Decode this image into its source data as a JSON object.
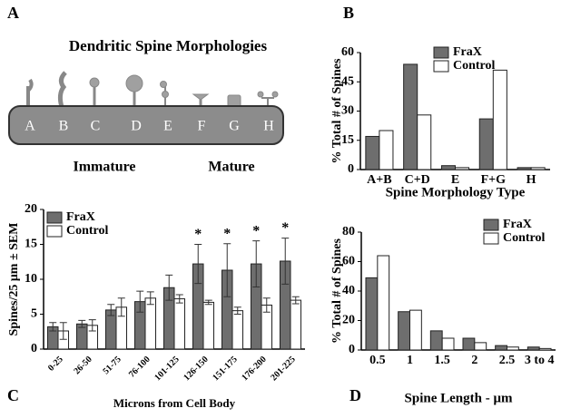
{
  "panel_labels": [
    "A",
    "B",
    "C",
    "D"
  ],
  "diagram": {
    "title": "Dendritic Spine Morphologies",
    "spine_labels": [
      "A",
      "B",
      "C",
      "D",
      "E",
      "F",
      "G",
      "H"
    ],
    "groups": [
      "Immature",
      "Mature"
    ]
  },
  "chart_data": [
    {
      "type": "bar",
      "ylabel": "% Total # of Spines",
      "xlabel": "Spine Morphology Type",
      "categories": [
        "A+B",
        "C+D",
        "E",
        "F+G",
        "H"
      ],
      "series": [
        {
          "name": "FraX",
          "color": "#6e6e6e",
          "values": [
            17,
            54,
            2,
            26,
            1
          ]
        },
        {
          "name": "Control",
          "color": "#ffffff",
          "values": [
            20,
            28,
            1,
            51,
            1
          ]
        }
      ],
      "ylim": [
        0,
        60
      ],
      "yticks": [
        0,
        15,
        30,
        45,
        60
      ]
    },
    {
      "type": "bar",
      "ylabel": "Spines/25 μm ± SEM",
      "xlabel": "Microns from Cell Body",
      "categories": [
        "0-25",
        "26-50",
        "51-75",
        "76-100",
        "101-125",
        "126-150",
        "151-175",
        "176-200",
        "201-225"
      ],
      "series": [
        {
          "name": "FraX",
          "color": "#6e6e6e",
          "values": [
            3.2,
            3.6,
            5.6,
            6.8,
            8.8,
            12.2,
            11.3,
            12.2,
            12.6
          ],
          "errors": [
            0.6,
            0.5,
            0.8,
            1.5,
            1.8,
            2.8,
            3.8,
            3.3,
            3.3
          ]
        },
        {
          "name": "Control",
          "color": "#ffffff",
          "values": [
            2.6,
            3.4,
            6,
            7.3,
            7.2,
            6.7,
            5.5,
            6.3,
            7
          ],
          "errors": [
            1.2,
            0.8,
            1.3,
            0.9,
            0.6,
            0.3,
            0.5,
            1.0,
            0.5
          ]
        }
      ],
      "significance": [
        null,
        null,
        null,
        null,
        null,
        "*",
        "*",
        "*",
        "*"
      ],
      "ylim": [
        0,
        20
      ],
      "yticks": [
        0,
        5,
        10,
        15,
        20
      ]
    },
    {
      "type": "bar",
      "ylabel": "% Total # of Spines",
      "xlabel": "Spine Length - μm",
      "categories": [
        "0.5",
        "1",
        "1.5",
        "2",
        "2.5",
        "3 to 4"
      ],
      "series": [
        {
          "name": "FraX",
          "color": "#6e6e6e",
          "values": [
            49,
            26,
            13,
            8,
            3,
            2
          ]
        },
        {
          "name": "Control",
          "color": "#ffffff",
          "values": [
            64,
            27,
            8,
            5,
            2,
            1
          ]
        }
      ],
      "ylim": [
        0,
        80
      ],
      "yticks": [
        0,
        20,
        40,
        60,
        80
      ]
    }
  ]
}
